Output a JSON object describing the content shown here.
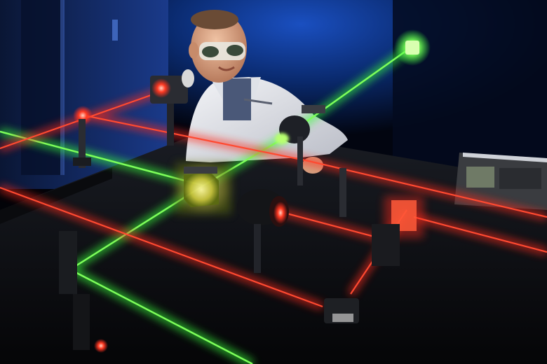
{
  "scene": {
    "subject": "laser-optics-lab",
    "colors": {
      "background": "#020308",
      "wall_blue": "#0a2a6e",
      "green_beam": "#39ff3a",
      "red_beam": "#ff2a1e",
      "lab_coat": "#e8eaee",
      "optical_table": "#0c0d10"
    }
  }
}
